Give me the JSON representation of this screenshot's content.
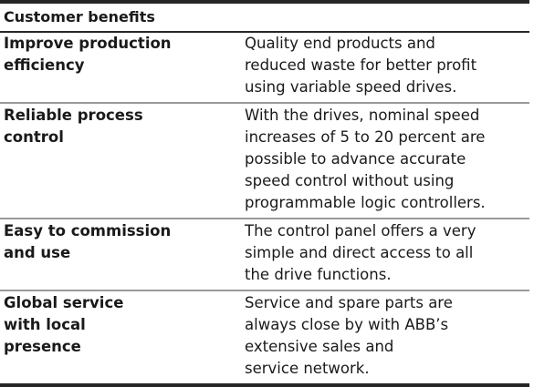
{
  "table": {
    "header": "Customer benefits",
    "rows": [
      [
        [
          "Improve production",
          "efficiency"
        ],
        [
          "Quality end products and",
          "reduced waste for better profit",
          "using variable speed drives."
        ]
      ],
      [
        [
          "Reliable process",
          "control"
        ],
        [
          "With the drives, nominal speed",
          "increases of 5 to 20 percent are",
          "possible to advance accurate",
          "speed control without using",
          "programmable logic controllers."
        ]
      ],
      [
        [
          "Easy to commission",
          "and use"
        ],
        [
          "The control panel offers a very",
          "simple and direct access to all",
          "the drive functions."
        ]
      ],
      [
        [
          "Global service",
          "with local",
          "presence"
        ],
        [
          "Service and spare parts are",
          "always close by with ABB’s",
          "extensive sales and",
          "service network."
        ]
      ]
    ]
  }
}
